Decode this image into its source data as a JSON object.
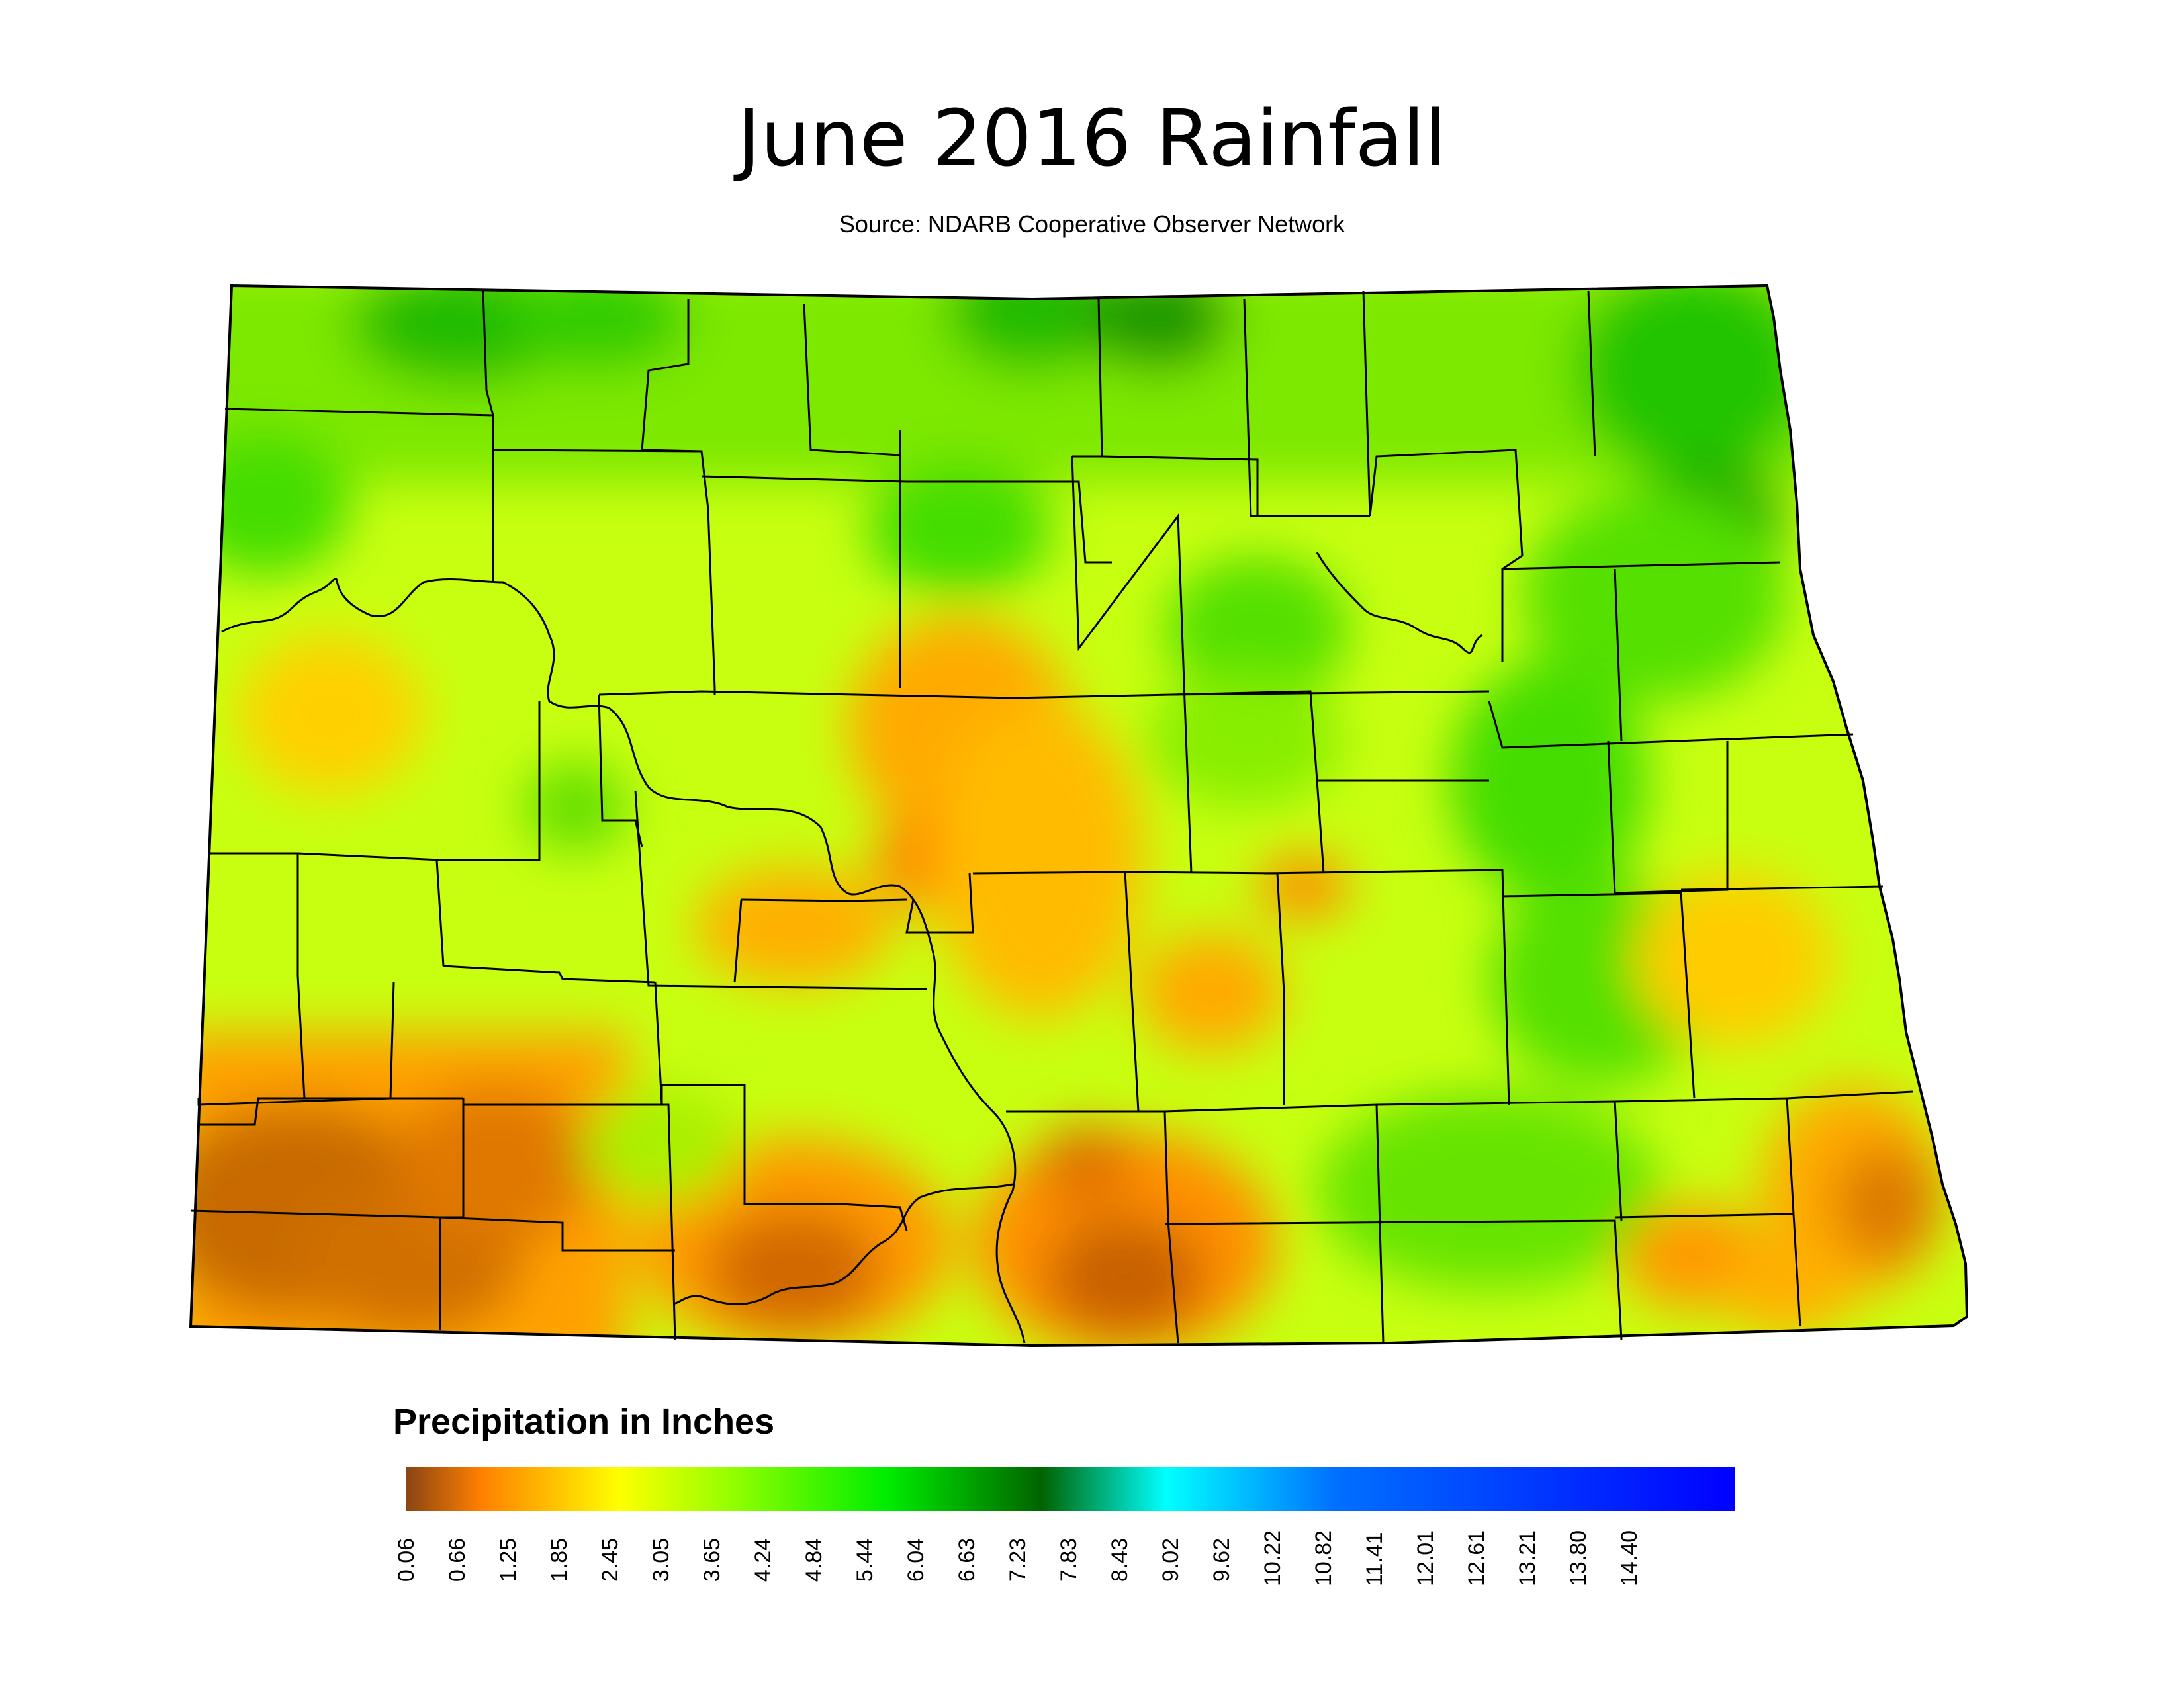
{
  "title": "June 2016 Rainfall",
  "subtitle": "Source: NDARB Cooperative Observer Network",
  "legend": {
    "title": "Precipitation in Inches",
    "ticks": [
      "0.06",
      "0.66",
      "1.25",
      "1.85",
      "2.45",
      "3.05",
      "3.65",
      "4.24",
      "4.84",
      "5.44",
      "6.04",
      "6.63",
      "7.23",
      "7.83",
      "8.43",
      "9.02",
      "9.62",
      "10.22",
      "10.82",
      "11.41",
      "12.01",
      "12.61",
      "13.21",
      "13.80",
      "14.40"
    ],
    "range": [
      0.06,
      15.0
    ],
    "color_stops": [
      {
        "value": 0.06,
        "color": "#8b4513"
      },
      {
        "value": 0.9,
        "color": "#ff8000"
      },
      {
        "value": 1.85,
        "color": "#ffcc00"
      },
      {
        "value": 2.45,
        "color": "#ffff00"
      },
      {
        "value": 3.65,
        "color": "#99ff00"
      },
      {
        "value": 5.44,
        "color": "#00ee00"
      },
      {
        "value": 7.2,
        "color": "#006400"
      },
      {
        "value": 8.6,
        "color": "#00ffff"
      },
      {
        "value": 10.5,
        "color": "#0070ff"
      },
      {
        "value": 15.0,
        "color": "#0000ff"
      }
    ]
  },
  "map": {
    "region": "North Dakota",
    "colors": {
      "wet": "#33dd00",
      "moderate": "#ccff00",
      "dry": "#ffaa00",
      "very_dry": "#d06000",
      "outline": "#000000"
    }
  }
}
